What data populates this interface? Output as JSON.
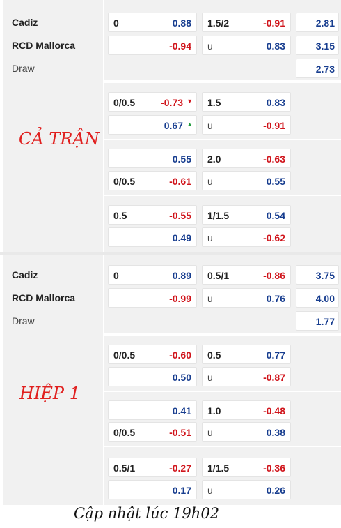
{
  "full_match": {
    "label": "CẢ TRẬN",
    "teams": {
      "home": "Cadiz",
      "away": "RCD Mallorca",
      "draw": "Draw"
    },
    "main": {
      "hcap": {
        "home_line": "0",
        "home_odds": "0.88",
        "away_line": "",
        "away_odds": "-0.94"
      },
      "ou": {
        "over_line": "1.5/2",
        "over_odds": "-0.91",
        "under_line": "u",
        "under_odds": "0.83"
      },
      "x12": {
        "home": "2.81",
        "away": "3.15",
        "draw": "2.73"
      }
    },
    "alt": [
      {
        "hcap": {
          "home_line": "0/0.5",
          "home_odds": "-0.73",
          "home_trend": "▼",
          "away_line": "",
          "away_odds": "0.67",
          "away_trend": "▲"
        },
        "ou": {
          "over_line": "1.5",
          "over_odds": "0.83",
          "under_line": "u",
          "under_odds": "-0.91"
        }
      },
      {
        "hcap": {
          "home_line": "",
          "home_odds": "0.55",
          "away_line": "0/0.5",
          "away_odds": "-0.61"
        },
        "ou": {
          "over_line": "2.0",
          "over_odds": "-0.63",
          "under_line": "u",
          "under_odds": "0.55"
        }
      },
      {
        "hcap": {
          "home_line": "0.5",
          "home_odds": "-0.55",
          "away_line": "",
          "away_odds": "0.49"
        },
        "ou": {
          "over_line": "1/1.5",
          "over_odds": "0.54",
          "under_line": "u",
          "under_odds": "-0.62"
        }
      }
    ]
  },
  "first_half": {
    "label": "HIỆP 1",
    "teams": {
      "home": "Cadiz",
      "away": "RCD Mallorca",
      "draw": "Draw"
    },
    "main": {
      "hcap": {
        "home_line": "0",
        "home_odds": "0.89",
        "away_line": "",
        "away_odds": "-0.99"
      },
      "ou": {
        "over_line": "0.5/1",
        "over_odds": "-0.86",
        "under_line": "u",
        "under_odds": "0.76"
      },
      "x12": {
        "home": "3.75",
        "away": "4.00",
        "draw": "1.77"
      }
    },
    "alt": [
      {
        "hcap": {
          "home_line": "0/0.5",
          "home_odds": "-0.60",
          "away_line": "",
          "away_odds": "0.50"
        },
        "ou": {
          "over_line": "0.5",
          "over_odds": "0.77",
          "under_line": "u",
          "under_odds": "-0.87"
        }
      },
      {
        "hcap": {
          "home_line": "",
          "home_odds": "0.41",
          "away_line": "0/0.5",
          "away_odds": "-0.51"
        },
        "ou": {
          "over_line": "1.0",
          "over_odds": "-0.48",
          "under_line": "u",
          "under_odds": "0.38"
        }
      },
      {
        "hcap": {
          "home_line": "0.5/1",
          "home_odds": "-0.27",
          "away_line": "",
          "away_odds": "0.17"
        },
        "ou": {
          "over_line": "1/1.5",
          "over_odds": "-0.36",
          "under_line": "u",
          "under_odds": "0.26"
        }
      }
    ]
  },
  "footer": "Cập nhật lúc 19h02",
  "colors": {
    "negative": "#d0141b",
    "positive": "#173d8f",
    "up": "#1e9a3a",
    "background": "#f1f1f1"
  }
}
